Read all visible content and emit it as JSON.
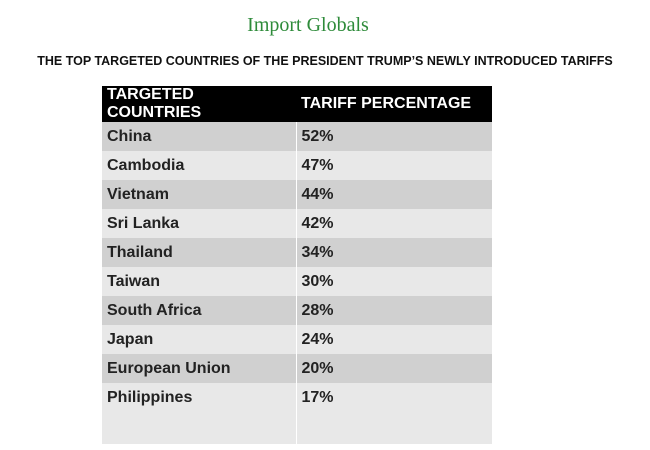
{
  "header": {
    "logo": "Import Globals",
    "title": "THE TOP TARGETED COUNTRIES OF THE PRESIDENT TRUMP’S NEWLY INTRODUCED TARIFFS"
  },
  "table": {
    "columns": [
      "TARGETED COUNTRIES",
      "TARIFF PERCENTAGE"
    ],
    "rows": [
      [
        "China",
        "52%"
      ],
      [
        "Cambodia",
        "47%"
      ],
      [
        "Vietnam",
        "44%"
      ],
      [
        "Sri Lanka",
        "42%"
      ],
      [
        "Thailand",
        "34%"
      ],
      [
        "Taiwan",
        "30%"
      ],
      [
        "South Africa",
        "28%"
      ],
      [
        "Japan",
        "24%"
      ],
      [
        "European Union",
        "20%"
      ],
      [
        "Philippines",
        "17%"
      ]
    ]
  }
}
